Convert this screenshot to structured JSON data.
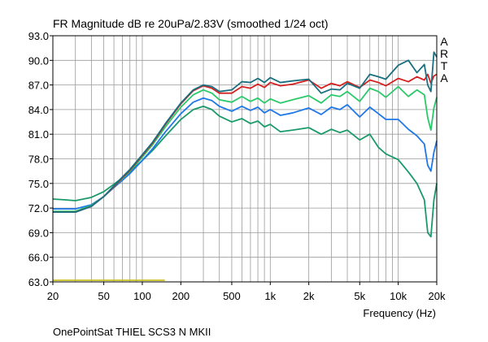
{
  "chart_data": {
    "type": "line",
    "title": "FR Magnitude dB re 20uPa/2.83V (smoothed 1/24 oct)",
    "xlabel": "Frequency (Hz)",
    "ylabel": "",
    "xscale": "log",
    "xlim": [
      20,
      20000
    ],
    "ylim": [
      63.0,
      93.0
    ],
    "xticks": [
      20,
      50,
      100,
      200,
      500,
      1000,
      2000,
      5000,
      10000,
      20000
    ],
    "xtick_labels": [
      "20",
      "50",
      "100",
      "200",
      "500",
      "1k",
      "2k",
      "5k",
      "10k",
      "20k"
    ],
    "yticks": [
      63.0,
      66.0,
      69.0,
      72.0,
      75.0,
      78.0,
      81.0,
      84.0,
      87.0,
      90.0,
      93.0
    ],
    "ytick_labels": [
      "63.0",
      "66.0",
      "69.0",
      "72.0",
      "75.0",
      "78.0",
      "81.0",
      "84.0",
      "87.0",
      "90.0",
      "93.0"
    ],
    "grid": true,
    "side_label": [
      "A",
      "R",
      "T",
      "A"
    ],
    "caption": "OnePointSat THIEL SCS3 N MKII",
    "series": [
      {
        "color": "#1a9a6a",
        "x": [
          20,
          25,
          30,
          40,
          50,
          60,
          70,
          80,
          100,
          120,
          150,
          200,
          250,
          300,
          350,
          400,
          500,
          600,
          700,
          800,
          900,
          1000,
          1200,
          1500,
          2000,
          2500,
          3000,
          3500,
          4000,
          5000,
          6000,
          7000,
          8000,
          10000,
          12000,
          14000,
          16000,
          17000,
          18000,
          19000,
          20000
        ],
        "y": [
          73.1,
          73.0,
          72.9,
          73.3,
          74.0,
          74.9,
          75.7,
          76.4,
          77.8,
          79.0,
          80.7,
          82.8,
          84.0,
          84.4,
          84.0,
          83.2,
          82.5,
          82.9,
          82.3,
          82.6,
          81.9,
          82.2,
          81.3,
          81.5,
          81.8,
          81.0,
          81.6,
          81.2,
          81.5,
          80.3,
          81.0,
          79.4,
          78.6,
          77.9,
          76.4,
          75.0,
          73.0,
          69.0,
          68.5,
          73.0,
          75.0
        ]
      },
      {
        "color": "#1f78e8",
        "x": [
          20,
          25,
          30,
          40,
          50,
          60,
          70,
          80,
          100,
          120,
          150,
          200,
          250,
          300,
          350,
          400,
          500,
          600,
          700,
          800,
          900,
          1000,
          1200,
          1500,
          2000,
          2500,
          3000,
          3500,
          4000,
          5000,
          6000,
          7000,
          8000,
          10000,
          12000,
          14000,
          16000,
          17000,
          18000,
          19000,
          20000
        ],
        "y": [
          71.9,
          71.9,
          71.9,
          72.4,
          73.4,
          74.5,
          75.4,
          76.2,
          77.8,
          79.2,
          81.2,
          83.5,
          84.9,
          85.4,
          85.1,
          84.4,
          83.8,
          84.4,
          83.9,
          84.3,
          83.6,
          84.0,
          83.3,
          83.6,
          84.2,
          83.4,
          84.3,
          84.0,
          84.6,
          83.1,
          84.3,
          83.5,
          82.8,
          82.8,
          81.6,
          80.8,
          79.8,
          77.2,
          76.5,
          78.8,
          80.2
        ]
      },
      {
        "color": "#2aca6a",
        "x": [
          20,
          25,
          30,
          40,
          50,
          60,
          70,
          80,
          100,
          120,
          150,
          200,
          250,
          300,
          350,
          400,
          500,
          600,
          700,
          800,
          900,
          1000,
          1200,
          1500,
          2000,
          2500,
          3000,
          3500,
          4000,
          5000,
          6000,
          7000,
          8000,
          10000,
          12000,
          14000,
          16000,
          17000,
          18000,
          19000,
          20000
        ],
        "y": [
          71.6,
          71.6,
          71.6,
          72.3,
          73.4,
          74.6,
          75.6,
          76.5,
          78.2,
          79.7,
          81.8,
          84.3,
          85.8,
          86.4,
          86.0,
          85.2,
          84.9,
          85.6,
          85.0,
          85.4,
          84.8,
          85.3,
          84.8,
          85.2,
          85.7,
          84.8,
          85.8,
          85.6,
          86.2,
          85.0,
          86.6,
          86.2,
          85.5,
          86.8,
          85.6,
          86.4,
          85.8,
          83.0,
          81.5,
          84.2,
          85.5
        ]
      },
      {
        "color": "#d42020",
        "x": [
          20,
          25,
          30,
          40,
          50,
          60,
          70,
          80,
          100,
          120,
          150,
          200,
          250,
          300,
          350,
          400,
          500,
          600,
          700,
          800,
          900,
          1000,
          1200,
          1500,
          2000,
          2500,
          3000,
          3500,
          4000,
          5000,
          6000,
          7000,
          8000,
          10000,
          12000,
          14000,
          16000,
          17000,
          18000,
          19000,
          20000
        ],
        "y": [
          71.5,
          71.5,
          71.5,
          72.2,
          73.4,
          74.6,
          75.7,
          76.6,
          78.4,
          79.9,
          82.1,
          84.7,
          86.3,
          86.9,
          86.6,
          86.0,
          86.0,
          86.8,
          86.6,
          87.1,
          86.7,
          87.3,
          86.9,
          87.1,
          87.6,
          86.6,
          87.2,
          86.9,
          87.4,
          86.7,
          87.6,
          87.3,
          86.9,
          87.8,
          87.4,
          88.0,
          87.6,
          88.3,
          87.2,
          88.1,
          88.3
        ]
      },
      {
        "color": "#1a7080",
        "x": [
          20,
          25,
          30,
          40,
          50,
          60,
          70,
          80,
          100,
          120,
          150,
          200,
          250,
          300,
          350,
          400,
          500,
          600,
          700,
          800,
          900,
          1000,
          1200,
          1500,
          2000,
          2500,
          3000,
          3500,
          4000,
          5000,
          6000,
          7000,
          8000,
          10000,
          12000,
          14000,
          16000,
          17000,
          18000,
          19000,
          20000
        ],
        "y": [
          71.5,
          71.5,
          71.5,
          72.2,
          73.4,
          74.7,
          75.8,
          76.7,
          78.5,
          80.0,
          82.2,
          84.8,
          86.4,
          87.0,
          86.8,
          86.2,
          86.4,
          87.4,
          87.3,
          87.8,
          87.3,
          87.9,
          87.3,
          87.5,
          87.7,
          86.0,
          86.5,
          86.4,
          87.2,
          86.6,
          88.3,
          88.0,
          87.7,
          89.4,
          90.0,
          88.5,
          89.5,
          87.0,
          86.2,
          91.0,
          90.4
        ]
      },
      {
        "color": "#c8c020",
        "x": [
          20,
          150
        ],
        "y": [
          63.2,
          63.2
        ]
      }
    ]
  }
}
